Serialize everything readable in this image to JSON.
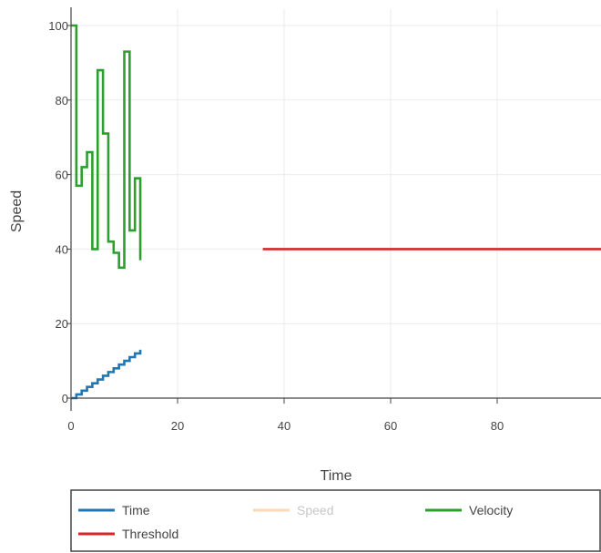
{
  "chart_data": {
    "type": "line",
    "title": "",
    "xlabel": "Time",
    "ylabel": "Speed",
    "xlim": [
      0,
      100
    ],
    "ylim": [
      0,
      100
    ],
    "xticks": [
      0,
      20,
      40,
      60,
      80
    ],
    "yticks": [
      0,
      20,
      40,
      60,
      80,
      100
    ],
    "grid": true,
    "legend_position": "bottom",
    "series": [
      {
        "name": "Time",
        "color": "#1f77b4",
        "step": true,
        "visible": true,
        "x": [
          0,
          1,
          2,
          3,
          4,
          5,
          6,
          7,
          8,
          9,
          10,
          11,
          12,
          13
        ],
        "y": [
          0,
          1,
          2,
          3,
          4,
          5,
          6,
          7,
          8,
          9,
          10,
          11,
          12,
          13
        ]
      },
      {
        "name": "Speed",
        "color": "#ffbb78",
        "step": true,
        "visible": false,
        "x": [],
        "y": []
      },
      {
        "name": "Velocity",
        "color": "#2ca02c",
        "step": true,
        "visible": true,
        "x": [
          0,
          1,
          2,
          3,
          4,
          5,
          6,
          7,
          8,
          9,
          10,
          11,
          12,
          13
        ],
        "y": [
          100,
          57,
          62,
          66,
          40,
          88,
          71,
          42,
          39,
          35,
          93,
          45,
          59,
          37
        ]
      },
      {
        "name": "Threshold",
        "color": "#d62728",
        "step": false,
        "visible": true,
        "x": [
          36,
          100
        ],
        "y": [
          40,
          40
        ]
      }
    ]
  }
}
